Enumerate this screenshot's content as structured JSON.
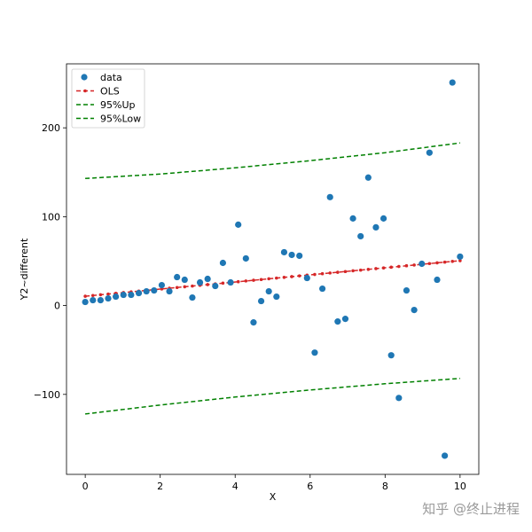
{
  "chart_data": {
    "type": "scatter",
    "xlabel": "X",
    "ylabel": "Y2~different",
    "xlim": [
      -0.5,
      10.5
    ],
    "ylim": [
      -190,
      272
    ],
    "xticks": [
      0,
      2,
      4,
      6,
      8,
      10
    ],
    "yticks": [
      -100,
      0,
      100,
      200
    ],
    "ytick_labels": [
      "−100",
      "0",
      "100",
      "200"
    ],
    "grid": false,
    "legend_position": "top-left",
    "colors": {
      "data": "#1f77b4",
      "ols": "#d62728",
      "bands": "#008000"
    },
    "series": [
      {
        "name": "data",
        "kind": "points",
        "x": [
          0,
          0.204,
          0.408,
          0.612,
          0.816,
          1.02,
          1.224,
          1.429,
          1.633,
          1.837,
          2.041,
          2.245,
          2.449,
          2.653,
          2.857,
          3.061,
          3.265,
          3.469,
          3.673,
          3.878,
          4.082,
          4.286,
          4.49,
          4.694,
          4.898,
          5.102,
          5.306,
          5.51,
          5.714,
          5.918,
          6.122,
          6.327,
          6.531,
          6.735,
          6.939,
          7.143,
          7.347,
          7.551,
          7.755,
          7.959,
          8.163,
          8.367,
          8.571,
          8.776,
          8.98,
          9.184,
          9.388,
          9.592,
          9.796,
          10
        ],
        "y": [
          4,
          6,
          6,
          8,
          10,
          12,
          12,
          14,
          16,
          17,
          23,
          16,
          32,
          29,
          9,
          26,
          30,
          22,
          48,
          26,
          91,
          53,
          -19,
          5,
          16,
          10,
          60,
          57,
          56,
          31,
          -53,
          19,
          122,
          -18,
          -15,
          98,
          78,
          144,
          88,
          98,
          -56,
          -104,
          17,
          -5,
          47,
          172,
          29,
          -169,
          251,
          55
        ]
      },
      {
        "name": "OLS",
        "kind": "line-markers",
        "start": 10.5,
        "end": 50.5
      },
      {
        "name": "95%Up",
        "kind": "dashed-line",
        "x": [
          0,
          2,
          4,
          6,
          8,
          10
        ],
        "y": [
          143,
          148,
          155,
          163,
          172,
          183
        ]
      },
      {
        "name": "95%Low",
        "kind": "dashed-line",
        "x": [
          0,
          2,
          4,
          6,
          8,
          10
        ],
        "y": [
          -122,
          -112,
          -103,
          -95,
          -88,
          -82
        ]
      }
    ]
  },
  "watermark": "知乎 @终止进程"
}
